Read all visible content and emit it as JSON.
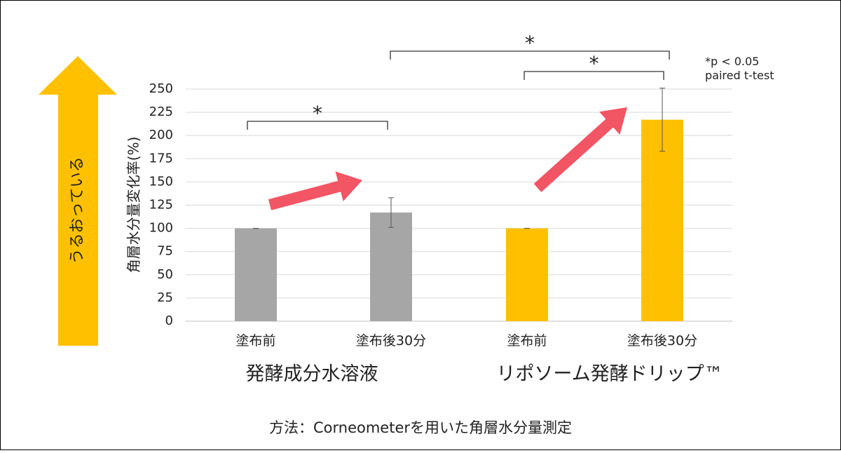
{
  "chart_data": {
    "type": "bar",
    "y_label": "角層水分量変化率(%)",
    "categories": [
      "塗布前",
      "塗布後30分",
      "塗布前",
      "塗布後30分"
    ],
    "values": [
      100,
      117,
      100,
      217
    ],
    "errors": [
      0,
      16,
      0,
      34
    ],
    "colors": [
      "#a6a6a6",
      "#a6a6a6",
      "#ffc000",
      "#ffc000"
    ],
    "groups": [
      "発酵成分水溶液",
      "リポソーム発酵ドリップ™"
    ],
    "ylim": [
      0,
      250
    ],
    "yticks": [
      0,
      25,
      50,
      75,
      100,
      125,
      150,
      175,
      200,
      225,
      250
    ],
    "grid": true,
    "significance_marks": [
      "*",
      "*",
      "*"
    ],
    "note": [
      "*p < 0.05",
      "paired t-test"
    ],
    "arrow_label": "うるおっている",
    "method": "方法：Corneometerを用いた角層水分量測定"
  }
}
